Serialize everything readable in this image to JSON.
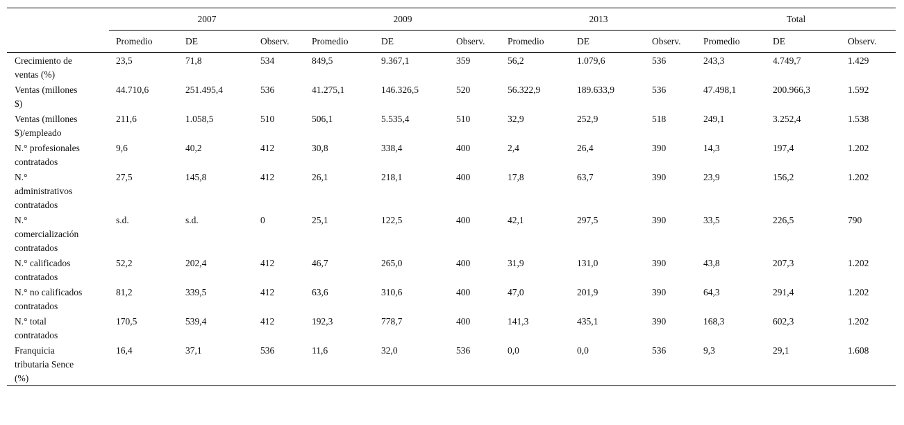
{
  "table": {
    "groups": [
      {
        "label": "2007",
        "columns": [
          "Promedio",
          "DE",
          "Observ."
        ]
      },
      {
        "label": "2009",
        "columns": [
          "Promedio",
          "DE",
          "Observ."
        ]
      },
      {
        "label": "2013",
        "columns": [
          "Promedio",
          "DE",
          "Observ."
        ]
      },
      {
        "label": "Total",
        "columns": [
          "Promedio",
          "DE",
          "Observ."
        ]
      }
    ],
    "rows": [
      {
        "label": "Crecimiento de ventas (%)",
        "cells": [
          "23,5",
          "71,8",
          "534",
          "849,5",
          "9.367,1",
          "359",
          "56,2",
          "1.079,6",
          "536",
          "243,3",
          "4.749,7",
          "1.429"
        ]
      },
      {
        "label": "Ventas (millones $)",
        "cells": [
          "44.710,6",
          "251.495,4",
          "536",
          "41.275,1",
          "146.326,5",
          "520",
          "56.322,9",
          "189.633,9",
          "536",
          "47.498,1",
          "200.966,3",
          "1.592"
        ]
      },
      {
        "label": "Ventas (millones $)/empleado",
        "cells": [
          "211,6",
          "1.058,5",
          "510",
          "506,1",
          "5.535,4",
          "510",
          "32,9",
          "252,9",
          "518",
          "249,1",
          "3.252,4",
          "1.538"
        ]
      },
      {
        "label": "N.° profesionales contratados",
        "cells": [
          "9,6",
          "40,2",
          "412",
          "30,8",
          "338,4",
          "400",
          "2,4",
          "26,4",
          "390",
          "14,3",
          "197,4",
          "1.202"
        ]
      },
      {
        "label": "N.° administrativos contratados",
        "cells": [
          "27,5",
          "145,8",
          "412",
          "26,1",
          "218,1",
          "400",
          "17,8",
          "63,7",
          "390",
          "23,9",
          "156,2",
          "1.202"
        ]
      },
      {
        "label": "N.° comercialización contratados",
        "cells": [
          "s.d.",
          "s.d.",
          "0",
          "25,1",
          "122,5",
          "400",
          "42,1",
          "297,5",
          "390",
          "33,5",
          "226,5",
          "790"
        ]
      },
      {
        "label": "N.° calificados contratados",
        "cells": [
          "52,2",
          "202,4",
          "412",
          "46,7",
          "265,0",
          "400",
          "31,9",
          "131,0",
          "390",
          "43,8",
          "207,3",
          "1.202"
        ]
      },
      {
        "label": "N.° no calificados contratados",
        "cells": [
          "81,2",
          "339,5",
          "412",
          "63,6",
          "310,6",
          "400",
          "47,0",
          "201,9",
          "390",
          "64,3",
          "291,4",
          "1.202"
        ]
      },
      {
        "label": "N.° total contratados",
        "cells": [
          "170,5",
          "539,4",
          "412",
          "192,3",
          "778,7",
          "400",
          "141,3",
          "435,1",
          "390",
          "168,3",
          "602,3",
          "1.202"
        ]
      },
      {
        "label": "Franquicia tributaria Sence (%)",
        "cells": [
          "16,4",
          "37,1",
          "536",
          "11,6",
          "32,0",
          "536",
          "0,0",
          "0,0",
          "536",
          "9,3",
          "29,1",
          "1.608"
        ]
      }
    ]
  }
}
